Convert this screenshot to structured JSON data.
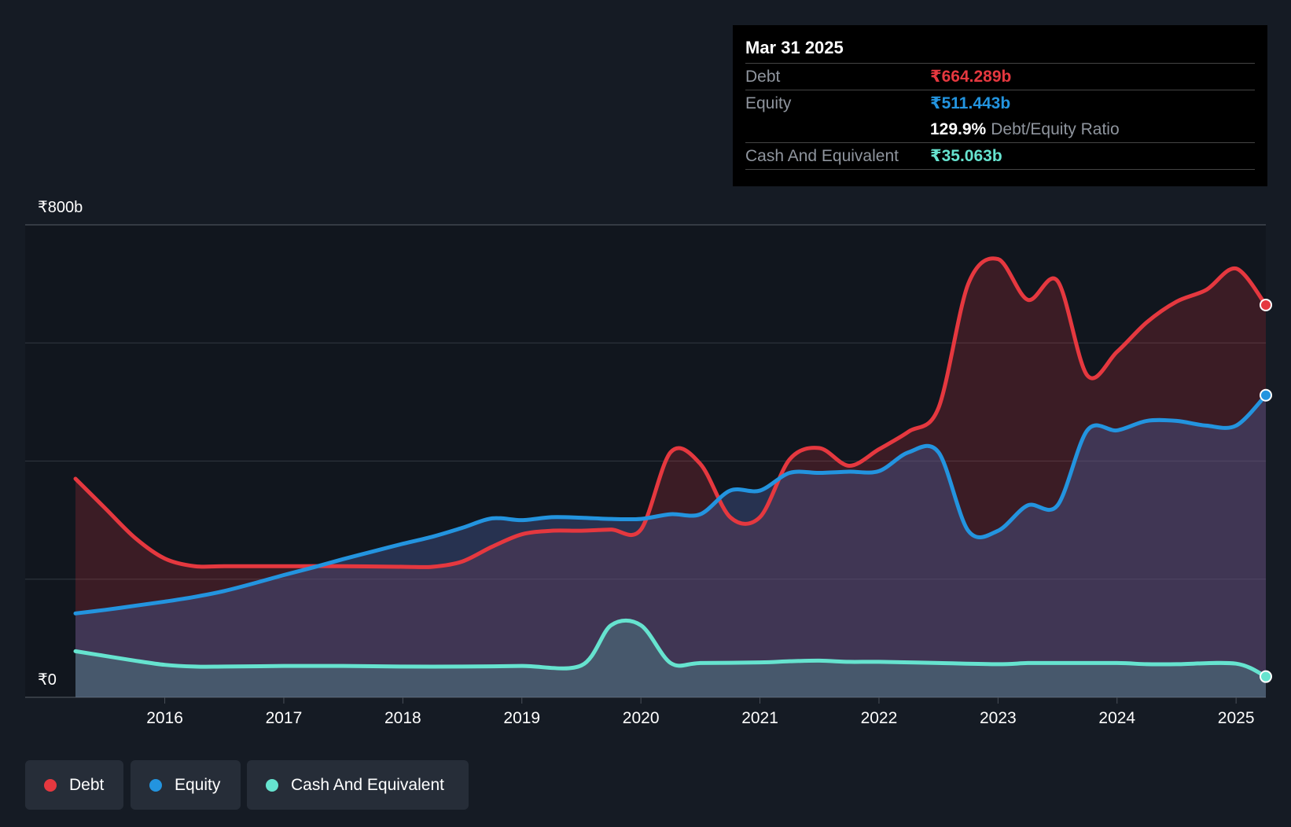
{
  "tooltip": {
    "date": "Mar 31 2025",
    "debt_label": "Debt",
    "debt_value": "₹664.289b",
    "equity_label": "Equity",
    "equity_value": "₹511.443b",
    "ratio_value": "129.9%",
    "ratio_label": "Debt/Equity Ratio",
    "cash_label": "Cash And Equivalent",
    "cash_value": "₹35.063b"
  },
  "legend": {
    "debt": "Debt",
    "equity": "Equity",
    "cash": "Cash And Equivalent"
  },
  "colors": {
    "debt": "#e5383f",
    "equity": "#2394df",
    "cash": "#66e3cf",
    "background": "#151b24"
  },
  "chart_data": {
    "type": "area",
    "title": "",
    "xlabel": "",
    "ylabel": "",
    "y_top_label": "₹800b",
    "y_bottom_label": "₹0",
    "ylim": [
      0,
      800
    ],
    "xlim": [
      2015.25,
      2025.25
    ],
    "x_ticks": [
      {
        "value": 2016,
        "label": "2016"
      },
      {
        "value": 2017,
        "label": "2017"
      },
      {
        "value": 2018,
        "label": "2018"
      },
      {
        "value": 2019,
        "label": "2019"
      },
      {
        "value": 2020,
        "label": "2020"
      },
      {
        "value": 2021,
        "label": "2021"
      },
      {
        "value": 2022,
        "label": "2022"
      },
      {
        "value": 2023,
        "label": "2023"
      },
      {
        "value": 2024,
        "label": "2024"
      },
      {
        "value": 2025,
        "label": "2025"
      }
    ],
    "series": [
      {
        "name": "Debt",
        "key": "debt",
        "points": [
          [
            2015.25,
            370
          ],
          [
            2015.5,
            320
          ],
          [
            2015.75,
            270
          ],
          [
            2016.0,
            235
          ],
          [
            2016.25,
            222
          ],
          [
            2016.5,
            222
          ],
          [
            2017.0,
            222
          ],
          [
            2017.5,
            222
          ],
          [
            2018.0,
            221
          ],
          [
            2018.25,
            221
          ],
          [
            2018.5,
            230
          ],
          [
            2018.75,
            255
          ],
          [
            2019.0,
            276
          ],
          [
            2019.25,
            282
          ],
          [
            2019.5,
            282
          ],
          [
            2019.75,
            284
          ],
          [
            2020.0,
            284
          ],
          [
            2020.25,
            415
          ],
          [
            2020.5,
            395
          ],
          [
            2020.75,
            305
          ],
          [
            2021.0,
            305
          ],
          [
            2021.25,
            403
          ],
          [
            2021.5,
            422
          ],
          [
            2021.75,
            392
          ],
          [
            2022.0,
            420
          ],
          [
            2022.25,
            450
          ],
          [
            2022.5,
            490
          ],
          [
            2022.75,
            700
          ],
          [
            2023.0,
            742
          ],
          [
            2023.25,
            673
          ],
          [
            2023.5,
            705
          ],
          [
            2023.75,
            545
          ],
          [
            2024.0,
            585
          ],
          [
            2024.25,
            635
          ],
          [
            2024.5,
            670
          ],
          [
            2024.75,
            690
          ],
          [
            2025.0,
            726
          ],
          [
            2025.25,
            664.289
          ]
        ]
      },
      {
        "name": "Equity",
        "key": "equity",
        "points": [
          [
            2015.25,
            142
          ],
          [
            2015.5,
            148
          ],
          [
            2015.75,
            155
          ],
          [
            2016.0,
            162
          ],
          [
            2016.25,
            170
          ],
          [
            2016.5,
            180
          ],
          [
            2016.75,
            193
          ],
          [
            2017.0,
            207
          ],
          [
            2017.25,
            220
          ],
          [
            2017.5,
            234
          ],
          [
            2017.75,
            247
          ],
          [
            2018.0,
            260
          ],
          [
            2018.25,
            272
          ],
          [
            2018.5,
            287
          ],
          [
            2018.75,
            303
          ],
          [
            2019.0,
            300
          ],
          [
            2019.25,
            305
          ],
          [
            2019.5,
            304
          ],
          [
            2019.75,
            302
          ],
          [
            2020.0,
            302
          ],
          [
            2020.25,
            310
          ],
          [
            2020.5,
            310
          ],
          [
            2020.75,
            350
          ],
          [
            2021.0,
            350
          ],
          [
            2021.25,
            380
          ],
          [
            2021.5,
            380
          ],
          [
            2021.75,
            382
          ],
          [
            2022.0,
            383
          ],
          [
            2022.25,
            415
          ],
          [
            2022.5,
            415
          ],
          [
            2022.75,
            282
          ],
          [
            2023.0,
            282
          ],
          [
            2023.25,
            325
          ],
          [
            2023.5,
            325
          ],
          [
            2023.75,
            452
          ],
          [
            2024.0,
            452
          ],
          [
            2024.25,
            468
          ],
          [
            2024.5,
            468
          ],
          [
            2024.75,
            460
          ],
          [
            2025.0,
            460
          ],
          [
            2025.25,
            511.443
          ]
        ]
      },
      {
        "name": "Cash And Equivalent",
        "key": "cash",
        "points": [
          [
            2015.25,
            78
          ],
          [
            2015.5,
            70
          ],
          [
            2015.75,
            62
          ],
          [
            2016.0,
            55
          ],
          [
            2016.25,
            52
          ],
          [
            2016.5,
            52
          ],
          [
            2017.0,
            53
          ],
          [
            2017.5,
            53
          ],
          [
            2018.0,
            52
          ],
          [
            2018.5,
            52
          ],
          [
            2019.0,
            53
          ],
          [
            2019.5,
            54
          ],
          [
            2019.75,
            122
          ],
          [
            2020.0,
            122
          ],
          [
            2020.25,
            58
          ],
          [
            2020.5,
            58
          ],
          [
            2021.0,
            59
          ],
          [
            2021.25,
            61
          ],
          [
            2021.5,
            62
          ],
          [
            2021.75,
            60
          ],
          [
            2022.0,
            60
          ],
          [
            2022.5,
            58
          ],
          [
            2023.0,
            56
          ],
          [
            2023.25,
            58
          ],
          [
            2023.5,
            58
          ],
          [
            2024.0,
            58
          ],
          [
            2024.25,
            56
          ],
          [
            2024.5,
            56
          ],
          [
            2025.0,
            57
          ],
          [
            2025.25,
            35.063
          ]
        ]
      }
    ]
  }
}
